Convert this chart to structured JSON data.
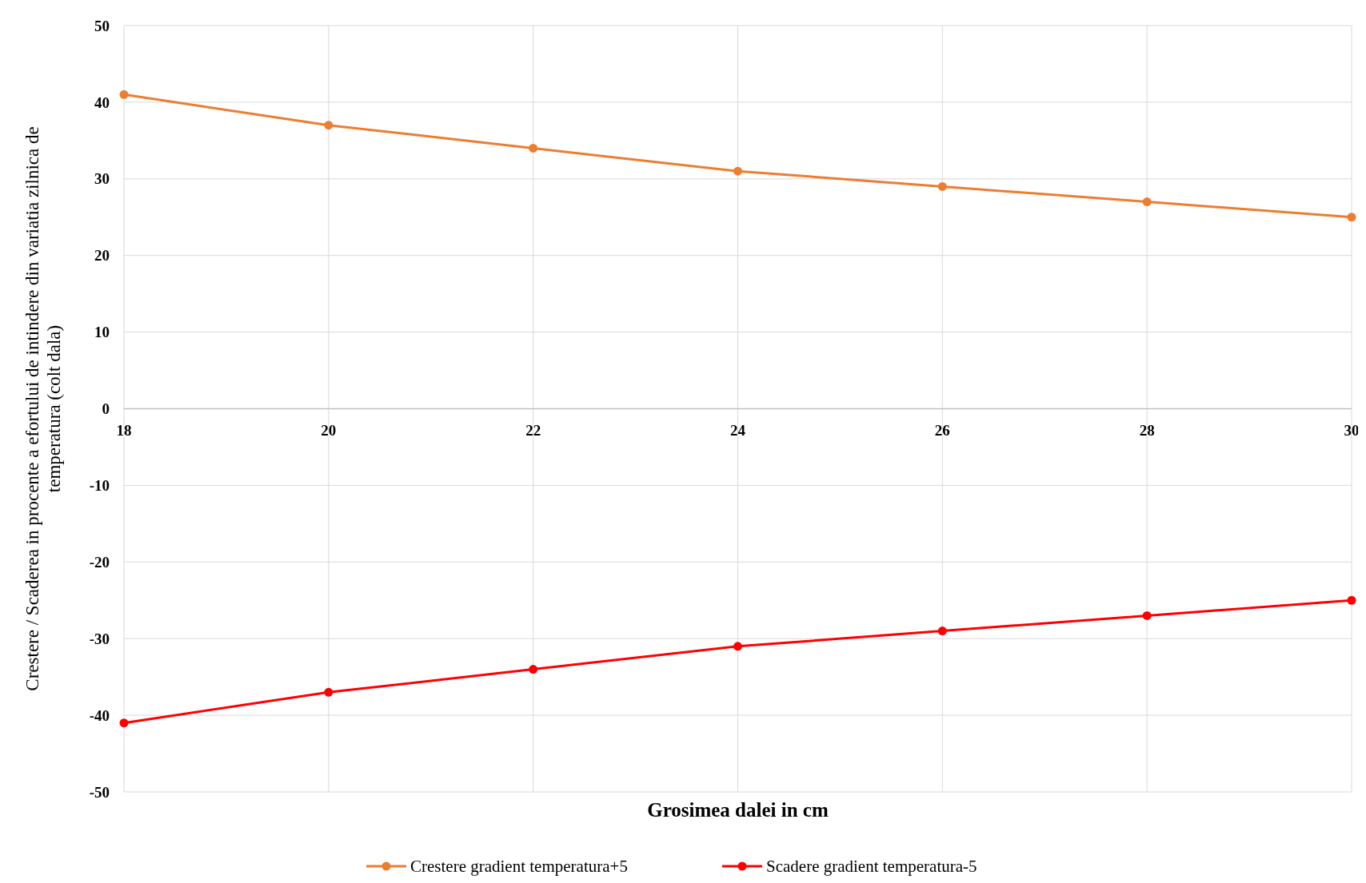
{
  "chart_data": {
    "type": "line",
    "xlabel": "Grosimea dalei in cm",
    "ylabel": "Crestere / Scaderea in procente a efortului de intindere din variatia zilnica de temperatura (colt dala)",
    "x": [
      18,
      20,
      22,
      24,
      26,
      28,
      30
    ],
    "series": [
      {
        "name": "Crestere gradient temperatura+5",
        "color": "#ed7d31",
        "values": [
          41,
          37,
          34,
          31,
          29,
          27,
          25
        ]
      },
      {
        "name": "Scadere gradient temperatura-5",
        "color": "#ff0000",
        "values": [
          -41,
          -37,
          -34,
          -31,
          -29,
          -27,
          -25
        ]
      }
    ],
    "xlim": [
      18,
      30
    ],
    "xticks": [
      18,
      20,
      22,
      24,
      26,
      28,
      30
    ],
    "ylim": [
      -50,
      50
    ],
    "yticks": [
      -50,
      -40,
      -30,
      -20,
      -10,
      0,
      10,
      20,
      30,
      40,
      50
    ],
    "grid": true,
    "legend": "bottom",
    "marker": "circle",
    "line_style": "solid"
  }
}
